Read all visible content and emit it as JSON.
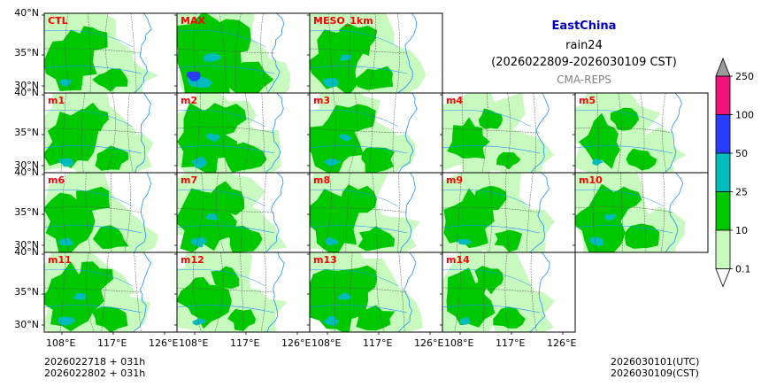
{
  "header": {
    "region": "EastChina",
    "variable": "rain24",
    "period": "(2026022809-2026030109 CST)",
    "system": "CMA-REPS"
  },
  "panels": [
    {
      "label": "CTL",
      "seed": 11,
      "intensity": 0.55
    },
    {
      "label": "MAX",
      "seed": 23,
      "intensity": 1.0
    },
    {
      "label": "MESO_1km",
      "seed": 37,
      "intensity": 0.7
    },
    {
      "label": "m1",
      "seed": 41,
      "intensity": 0.6
    },
    {
      "label": "m2",
      "seed": 53,
      "intensity": 0.75
    },
    {
      "label": "m3",
      "seed": 67,
      "intensity": 0.65
    },
    {
      "label": "m4",
      "seed": 71,
      "intensity": 0.35
    },
    {
      "label": "m5",
      "seed": 83,
      "intensity": 0.45
    },
    {
      "label": "m6",
      "seed": 97,
      "intensity": 0.6
    },
    {
      "label": "m7",
      "seed": 101,
      "intensity": 0.7
    },
    {
      "label": "m8",
      "seed": 113,
      "intensity": 0.6
    },
    {
      "label": "m9",
      "seed": 127,
      "intensity": 0.55
    },
    {
      "label": "m10",
      "seed": 131,
      "intensity": 0.65
    },
    {
      "label": "m11",
      "seed": 139,
      "intensity": 0.7
    },
    {
      "label": "m12",
      "seed": 149,
      "intensity": 0.5
    },
    {
      "label": "m13",
      "seed": 157,
      "intensity": 0.7
    },
    {
      "label": "m14",
      "seed": 163,
      "intensity": 0.55
    }
  ],
  "axes": {
    "lat_labels": [
      "40°N",
      "35°N",
      "30°N"
    ],
    "lon_labels": [
      "108°E",
      "117°E",
      "126°E"
    ]
  },
  "colorbar": {
    "levels": [
      "250",
      "100",
      "50",
      "25",
      "10",
      "0.1"
    ],
    "colors": [
      "#f0147a",
      "#2a3cff",
      "#00bcbc",
      "#00c800",
      "#c8fac0"
    ],
    "extend_max_color": "#9a9a9a"
  },
  "footer": {
    "init_line1": "2026022718  +  031h",
    "init_line2": "2026022802  +  031h",
    "valid_utc": "2026030101(UTC)",
    "valid_cst": "2026030109(CST)"
  },
  "colors": {
    "title": "#0000cc",
    "system": "#808080",
    "panel_label": "#ff0000",
    "coast": "#1e90ff",
    "border": "#555555"
  }
}
